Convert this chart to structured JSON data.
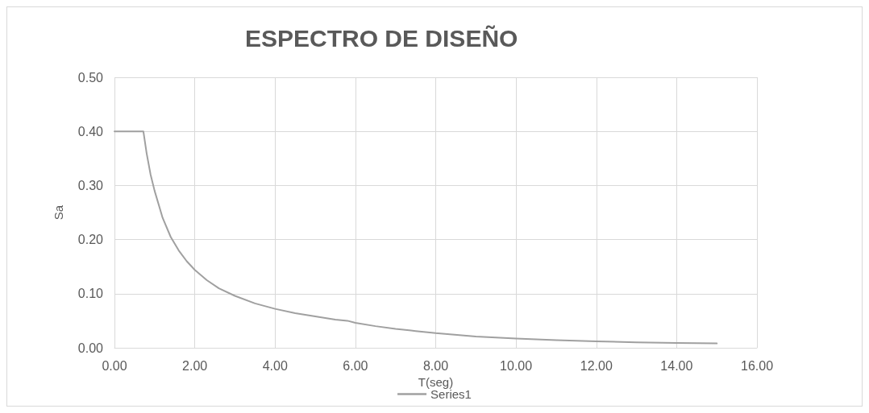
{
  "chart_data": {
    "type": "line",
    "title": "ESPECTRO DE DISEÑO",
    "xlabel": "T(seg)",
    "ylabel": "Sa",
    "series": [
      {
        "name": "Series1",
        "color": "#a0a0a0",
        "x": [
          0,
          0.2,
          0.4,
          0.6,
          0.72,
          0.8,
          0.9,
          1.0,
          1.2,
          1.4,
          1.6,
          1.8,
          2.0,
          2.3,
          2.6,
          3.0,
          3.5,
          4.0,
          4.5,
          5.0,
          5.5,
          5.8,
          6.0,
          6.5,
          7.0,
          7.5,
          8.0,
          9.0,
          10.0,
          11.0,
          12.0,
          13.0,
          14.0,
          15.0
        ],
        "values": [
          0.4,
          0.4,
          0.4,
          0.4,
          0.4,
          0.36,
          0.32,
          0.29,
          0.24,
          0.205,
          0.18,
          0.16,
          0.144,
          0.125,
          0.11,
          0.096,
          0.082,
          0.072,
          0.064,
          0.058,
          0.052,
          0.05,
          0.046,
          0.04,
          0.035,
          0.031,
          0.027,
          0.021,
          0.017,
          0.014,
          0.012,
          0.01,
          0.009,
          0.008
        ]
      }
    ],
    "xlim": [
      0,
      16
    ],
    "xticks": [
      {
        "value": 0,
        "label": "0.00"
      },
      {
        "value": 2,
        "label": "2.00"
      },
      {
        "value": 4,
        "label": "4.00"
      },
      {
        "value": 6,
        "label": "6.00"
      },
      {
        "value": 8,
        "label": "8.00"
      },
      {
        "value": 10,
        "label": "10.00"
      },
      {
        "value": 12,
        "label": "12.00"
      },
      {
        "value": 14,
        "label": "14.00"
      },
      {
        "value": 16,
        "label": "16.00"
      }
    ],
    "ylim": [
      0,
      0.5
    ],
    "yticks": [
      {
        "value": 0,
        "label": "0.00"
      },
      {
        "value": 0.1,
        "label": "0.10"
      },
      {
        "value": 0.2,
        "label": "0.20"
      },
      {
        "value": 0.3,
        "label": "0.30"
      },
      {
        "value": 0.4,
        "label": "0.40"
      },
      {
        "value": 0.5,
        "label": "0.50"
      }
    ],
    "grid": true,
    "legend": "bottom",
    "marker": "none",
    "line_style": "solid"
  }
}
